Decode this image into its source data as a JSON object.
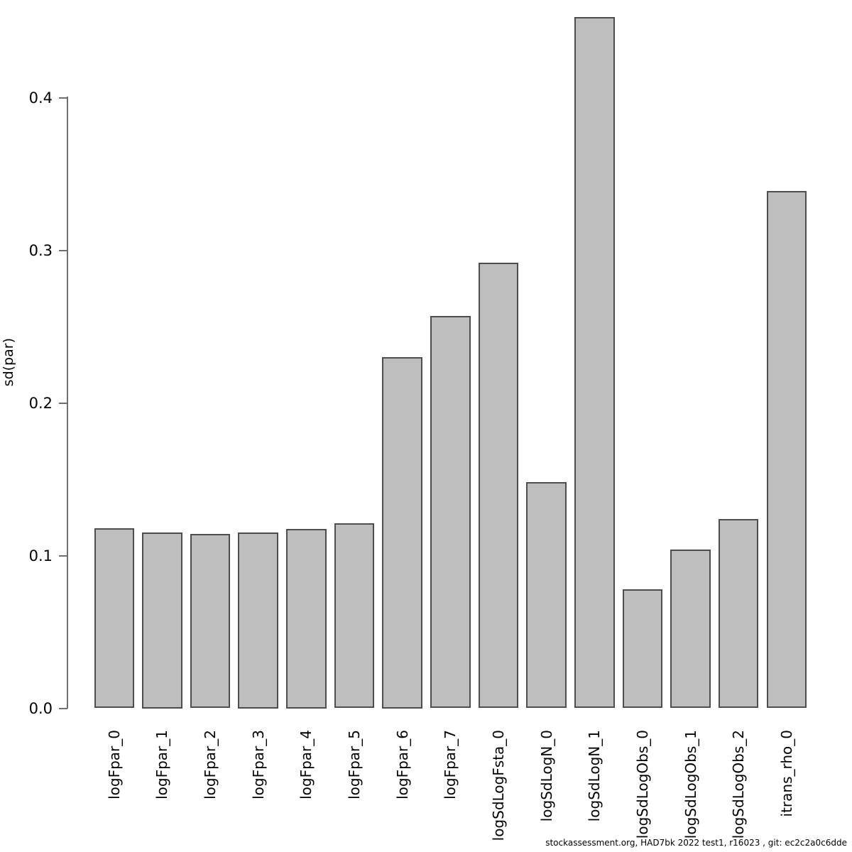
{
  "chart_data": {
    "type": "bar",
    "title": "",
    "xlabel": "",
    "ylabel": "sd(par)",
    "categories": [
      "logFpar_0",
      "logFpar_1",
      "logFpar_2",
      "logFpar_3",
      "logFpar_4",
      "logFpar_5",
      "logFpar_6",
      "logFpar_7",
      "logSdLogFsta_0",
      "logSdLogN_0",
      "logSdLogN_1",
      "logSdLogObs_0",
      "logSdLogObs_1",
      "logSdLogObs_2",
      "itrans_rho_0"
    ],
    "values": [
      0.118,
      0.115,
      0.114,
      0.115,
      0.1175,
      0.121,
      0.23,
      0.257,
      0.292,
      0.148,
      0.453,
      0.078,
      0.104,
      0.124,
      0.339
    ],
    "ylim": [
      0,
      0.46
    ],
    "yticks": [
      0.0,
      0.1,
      0.2,
      0.3,
      0.4
    ],
    "ytick_labels": [
      "0.0",
      "0.1",
      "0.2",
      "0.3",
      "0.4"
    ],
    "grid": false,
    "legend_position": "none",
    "bar_fill_color": "#bebebe",
    "bar_border_color": "#4d4d4d",
    "axis_color": "#6e6e6e",
    "text_color": "#000000"
  },
  "footer": {
    "text": "stockassessment.org, HAD7bk 2022 test1, r16023 , git: ec2c2a0c6dde"
  }
}
